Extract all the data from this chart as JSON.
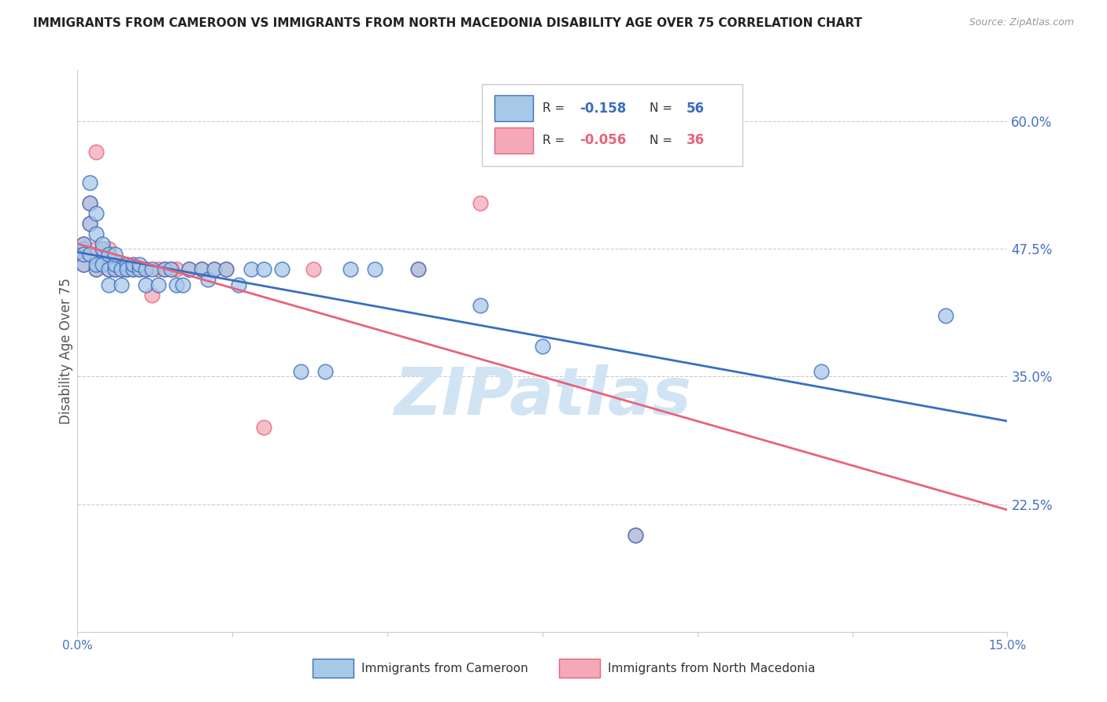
{
  "title": "IMMIGRANTS FROM CAMEROON VS IMMIGRANTS FROM NORTH MACEDONIA DISABILITY AGE OVER 75 CORRELATION CHART",
  "source": "Source: ZipAtlas.com",
  "ylabel": "Disability Age Over 75",
  "right_yticks": [
    60.0,
    47.5,
    35.0,
    22.5
  ],
  "xmin": 0.0,
  "xmax": 0.15,
  "ymin": 0.1,
  "ymax": 0.65,
  "color_blue": "#A8C8E8",
  "color_pink": "#F4A8B8",
  "line_color_blue": "#3A6EBF",
  "line_color_pink": "#E8637A",
  "right_axis_color": "#4472C4",
  "watermark_color": "#D0E4F4",
  "label1": "Immigrants from Cameroon",
  "label2": "Immigrants from North Macedonia",
  "cameroon_x": [
    0.001,
    0.001,
    0.001,
    0.001,
    0.002,
    0.002,
    0.002,
    0.002,
    0.003,
    0.003,
    0.003,
    0.003,
    0.004,
    0.004,
    0.004,
    0.005,
    0.005,
    0.005,
    0.006,
    0.006,
    0.006,
    0.007,
    0.007,
    0.008,
    0.008,
    0.009,
    0.009,
    0.01,
    0.01,
    0.011,
    0.011,
    0.012,
    0.013,
    0.014,
    0.015,
    0.016,
    0.017,
    0.018,
    0.02,
    0.021,
    0.022,
    0.024,
    0.026,
    0.028,
    0.03,
    0.033,
    0.036,
    0.04,
    0.044,
    0.048,
    0.055,
    0.065,
    0.075,
    0.09,
    0.12,
    0.14
  ],
  "cameroon_y": [
    0.475,
    0.48,
    0.46,
    0.47,
    0.52,
    0.5,
    0.54,
    0.47,
    0.51,
    0.49,
    0.455,
    0.46,
    0.475,
    0.46,
    0.48,
    0.455,
    0.47,
    0.44,
    0.455,
    0.46,
    0.47,
    0.455,
    0.44,
    0.46,
    0.455,
    0.455,
    0.46,
    0.455,
    0.46,
    0.455,
    0.44,
    0.455,
    0.44,
    0.455,
    0.455,
    0.44,
    0.44,
    0.455,
    0.455,
    0.445,
    0.455,
    0.455,
    0.44,
    0.455,
    0.455,
    0.455,
    0.355,
    0.355,
    0.455,
    0.455,
    0.455,
    0.42,
    0.38,
    0.195,
    0.355,
    0.41
  ],
  "macedonia_x": [
    0.001,
    0.001,
    0.001,
    0.001,
    0.002,
    0.002,
    0.003,
    0.003,
    0.003,
    0.004,
    0.005,
    0.005,
    0.005,
    0.006,
    0.006,
    0.007,
    0.007,
    0.008,
    0.008,
    0.009,
    0.01,
    0.011,
    0.012,
    0.013,
    0.014,
    0.015,
    0.016,
    0.018,
    0.02,
    0.022,
    0.024,
    0.03,
    0.038,
    0.055,
    0.065,
    0.09
  ],
  "macedonia_y": [
    0.475,
    0.46,
    0.47,
    0.48,
    0.5,
    0.52,
    0.57,
    0.475,
    0.455,
    0.46,
    0.46,
    0.475,
    0.455,
    0.455,
    0.455,
    0.455,
    0.455,
    0.455,
    0.455,
    0.455,
    0.455,
    0.455,
    0.43,
    0.455,
    0.455,
    0.455,
    0.455,
    0.455,
    0.455,
    0.455,
    0.455,
    0.3,
    0.455,
    0.455,
    0.52,
    0.195
  ]
}
